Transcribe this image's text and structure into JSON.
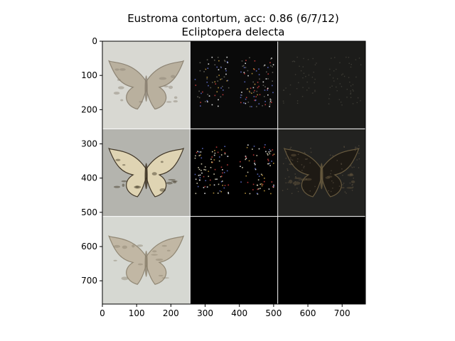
{
  "chart_data": {
    "type": "image-grid",
    "title": "Eustroma contortum, acc: 0.86 (6/7/12)",
    "subtitle": "Ecliptopera delecta",
    "xlim": [
      0,
      768
    ],
    "ylim": [
      768,
      0
    ],
    "xticks": [
      0,
      100,
      200,
      300,
      400,
      500,
      600,
      700
    ],
    "yticks": [
      0,
      100,
      200,
      300,
      400,
      500,
      600,
      700
    ],
    "grid": {
      "rows": 3,
      "cols": 3,
      "cell_size": 256,
      "separator_color": "#ffffff"
    },
    "panels": [
      {
        "row": 0,
        "col": 0,
        "content": "moth-photo",
        "background": "#d8d8d2",
        "wing": "#b8ae9c",
        "wing_dark": "#8a8070"
      },
      {
        "row": 0,
        "col": 1,
        "content": "attribution-map",
        "background": "#0a0a0a",
        "speckle": "#6a6860"
      },
      {
        "row": 0,
        "col": 2,
        "content": "attribution-overlay",
        "background": "#1c1c1a",
        "speckle": "#4a4840"
      },
      {
        "row": 1,
        "col": 0,
        "content": "moth-photo",
        "background": "#b4b4ae",
        "wing": "#e2d6b4",
        "wing_dark": "#3a3020"
      },
      {
        "row": 1,
        "col": 1,
        "content": "attribution-map",
        "background": "#000000",
        "speckle": "#e8e0c0"
      },
      {
        "row": 1,
        "col": 2,
        "content": "attribution-overlay",
        "background": "#222220",
        "wing": "#1e1a14",
        "wing_dark": "#6a5c40"
      },
      {
        "row": 2,
        "col": 0,
        "content": "moth-photo",
        "background": "#d6d8d2",
        "wing": "#c0b6a2",
        "wing_dark": "#8c826e"
      },
      {
        "row": 2,
        "col": 1,
        "content": "empty",
        "background": "#000000"
      },
      {
        "row": 2,
        "col": 2,
        "content": "empty",
        "background": "#000000"
      }
    ]
  }
}
